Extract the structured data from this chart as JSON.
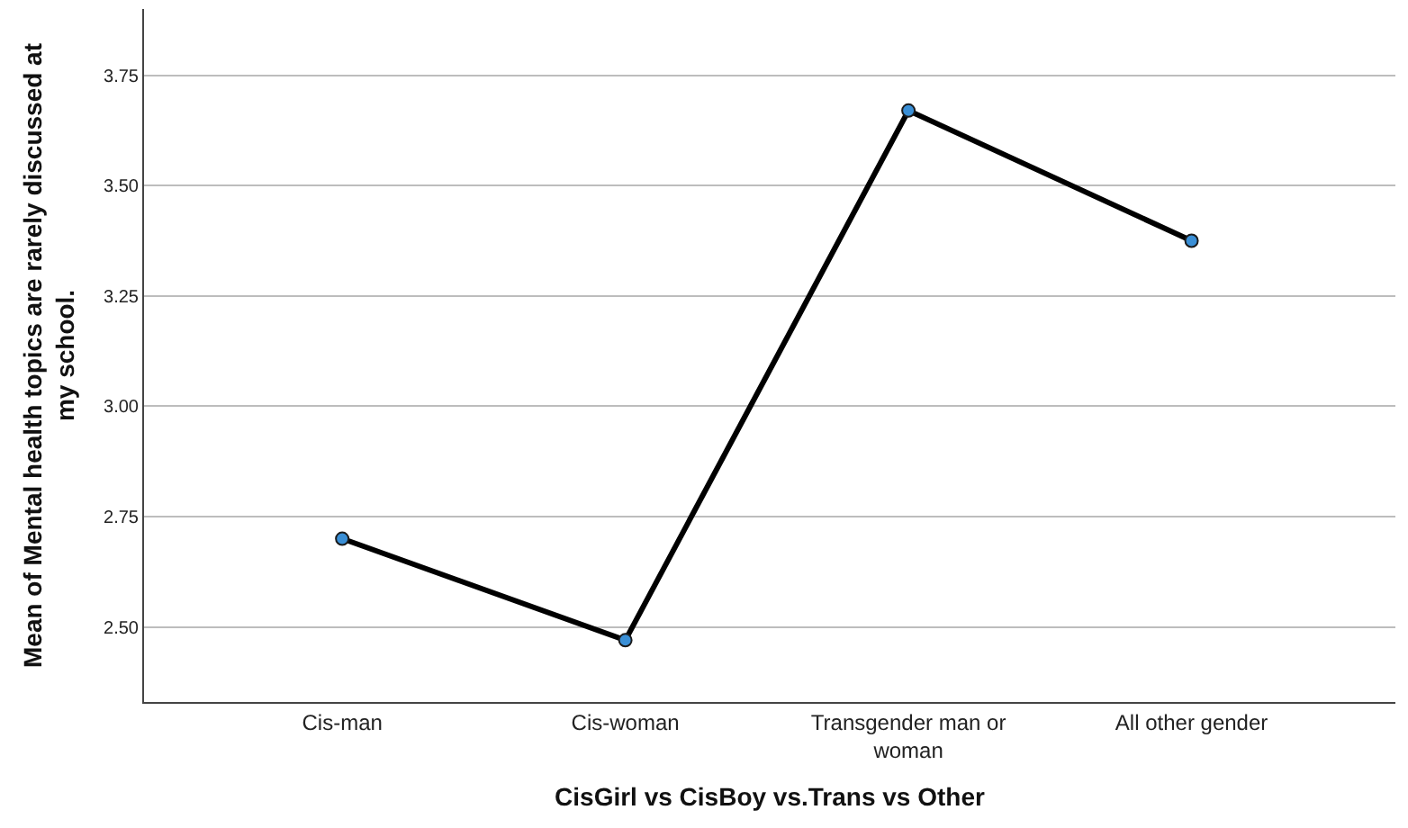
{
  "chart_data": {
    "type": "line",
    "xlabel": "CisGirl vs CisBoy vs.Trans vs Other",
    "ylabel": "Mean of Mental health topics are rarely discussed at my school.",
    "categories": [
      "Cis-man",
      "Cis-woman",
      "Transgender man or woman",
      "All other gender"
    ],
    "series": [
      {
        "color": "#000000",
        "values": [
          2.7,
          2.47,
          3.67,
          3.375
        ]
      }
    ],
    "ylim": [
      2.33,
      3.9
    ],
    "yticks": [
      {
        "value": 2.5,
        "label": "2.50"
      },
      {
        "value": 2.75,
        "label": "2.75"
      },
      {
        "value": 3.0,
        "label": "3.00"
      },
      3.25,
      {
        "value": 3.5,
        "label": "3.50"
      },
      3.75
    ],
    "grid": "y",
    "marker": "circle",
    "line_style": "solid"
  }
}
